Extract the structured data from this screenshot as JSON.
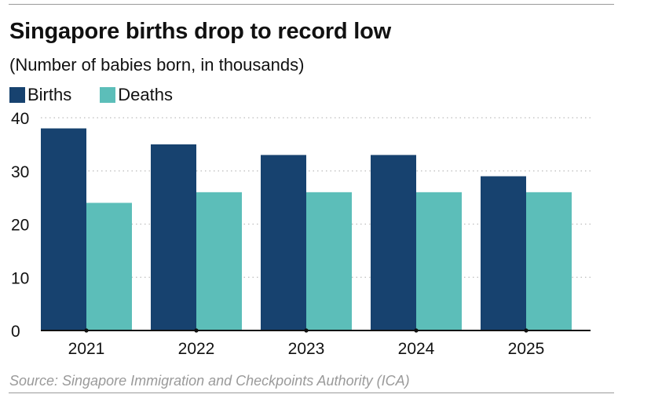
{
  "header": {
    "title": "Singapore births drop to record low",
    "subtitle": "(Number of babies born, in thousands)"
  },
  "footer": {
    "source": "Source: Singapore Immigration and Checkpoints Authority (ICA)"
  },
  "colors": {
    "births": "#17426f",
    "deaths": "#5cbeb9",
    "grid": "#bdbdbd",
    "axis": "#111111"
  },
  "chart_data": {
    "type": "bar",
    "title": "Singapore births drop to record low",
    "subtitle": "(Number of babies born, in thousands)",
    "categories": [
      "2021",
      "2022",
      "2023",
      "2024",
      "2025"
    ],
    "series": [
      {
        "name": "Births",
        "values": [
          38,
          35,
          33,
          33,
          29
        ]
      },
      {
        "name": "Deaths",
        "values": [
          24,
          26,
          26,
          26,
          26
        ]
      }
    ],
    "ylim": [
      0,
      40
    ],
    "yticks": [
      "0",
      "10",
      "20",
      "30",
      "40"
    ],
    "grid": true,
    "legend": "top-left"
  }
}
